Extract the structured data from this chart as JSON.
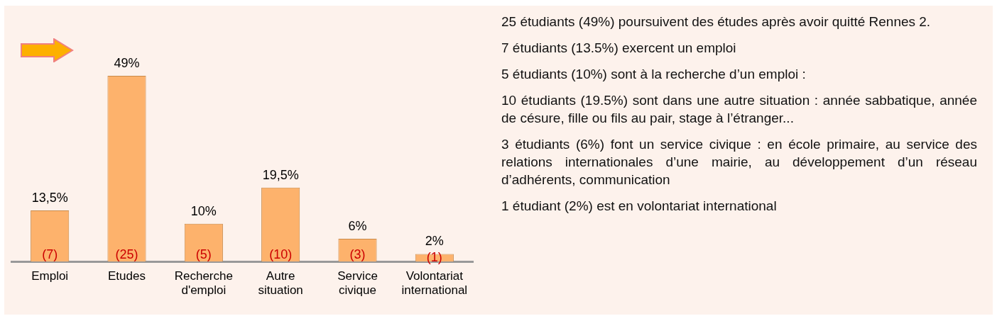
{
  "chart_data": [
    {
      "type": "bar",
      "categories": [
        "Emploi",
        "Etudes",
        "Recherche d'emploi",
        "Autre situation",
        "Service civique",
        "Volontariat international"
      ],
      "values": [
        13.5,
        49,
        10,
        19.5,
        6,
        2
      ],
      "color": "#fdb26c",
      "value_labels": [
        "13,5%",
        "49%",
        "10%",
        "19,5%",
        "6%",
        "2%"
      ],
      "annotations": [
        "(7)",
        "(25)",
        "(5)",
        "(10)",
        "(3)",
        "(1)"
      ]
    },
    {
      "type": "other",
      "annotations": [
        "25 étudiants (49%) poursuivent des études après avoir quitté Rennes 2.",
        "7 étudiants (13.5%) exercent un emploi",
        "5 étudiants (10%) sont à la recherche d’un emploi :",
        "10 étudiants (19.5%) sont dans une autre situation : année sabbatique, année de césure, fille ou fils au pair, stage à l’étranger...",
        "3 étudiants (6%) font un service civique :  en école primaire, au service des relations internationales d’une mairie, au développement d’un réseau d’adhérents, communication",
        "1 étudiant (2%) est en volontariat international"
      ]
    }
  ]
}
